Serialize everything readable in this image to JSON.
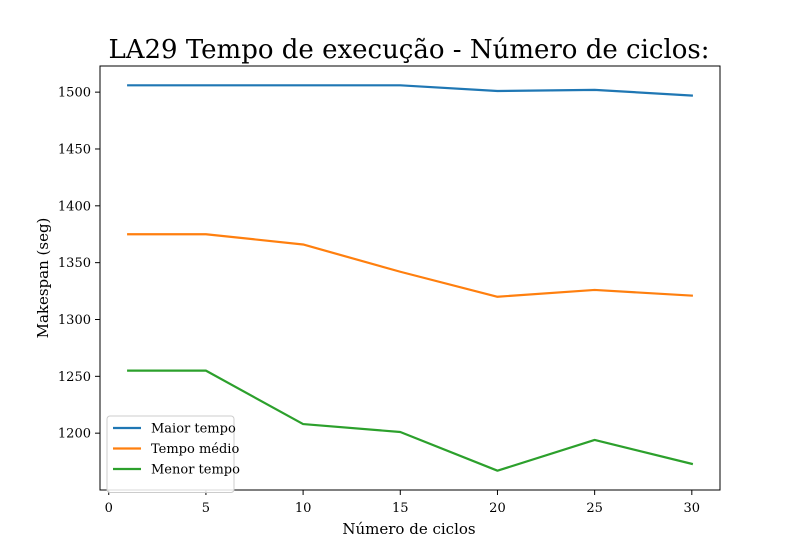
{
  "chart_data": {
    "type": "line",
    "title": "LA29 Tempo de execução - Número de ciclos:",
    "xlabel": "Número de ciclos",
    "ylabel": "Makespan (seg)",
    "xlim": [
      -0.45,
      31.45
    ],
    "ylim": [
      1150,
      1523
    ],
    "xticks": [
      0,
      5,
      10,
      15,
      20,
      25,
      30
    ],
    "yticks": [
      1200,
      1250,
      1300,
      1350,
      1400,
      1450,
      1500
    ],
    "x": [
      1,
      5,
      10,
      15,
      20,
      25,
      30
    ],
    "series": [
      {
        "name": "Maior tempo",
        "color": "#1f77b4",
        "values": [
          1506,
          1506,
          1506,
          1506,
          1501,
          1502,
          1497
        ]
      },
      {
        "name": "Tempo médio",
        "color": "#ff7f0e",
        "values": [
          1375,
          1375,
          1366,
          1342,
          1320,
          1326,
          1321
        ]
      },
      {
        "name": "Menor tempo",
        "color": "#2ca02c",
        "values": [
          1255,
          1255,
          1208,
          1201,
          1167,
          1194,
          1173
        ]
      }
    ],
    "grid": false,
    "legend_position": "lower-left"
  }
}
